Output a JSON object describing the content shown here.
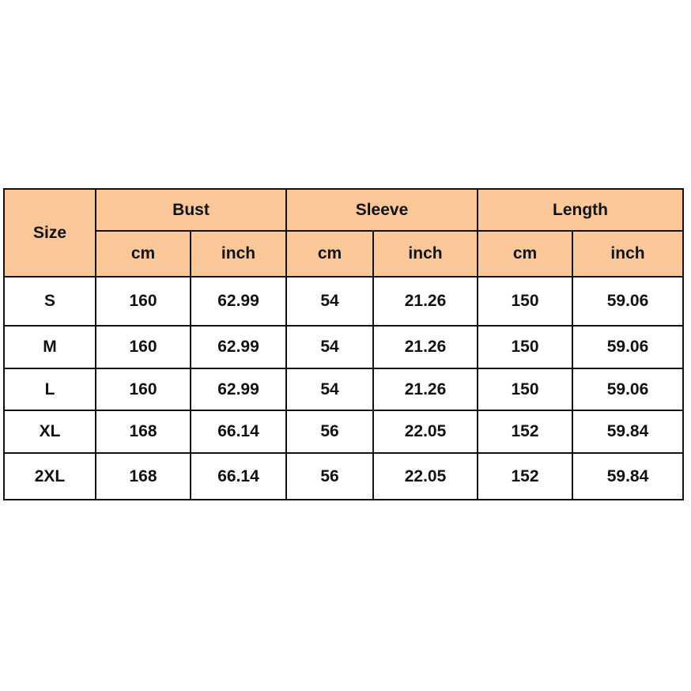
{
  "header": {
    "size": "Size",
    "groups": [
      "Bust",
      "Sleeve",
      "Length"
    ],
    "units": [
      "cm",
      "inch",
      "cm",
      "inch",
      "cm",
      "inch"
    ]
  },
  "colors": {
    "header_bg": "#fac898",
    "border": "#111111"
  },
  "rows": [
    [
      "S",
      "160",
      "62.99",
      "54",
      "21.26",
      "150",
      "59.06"
    ],
    [
      "M",
      "160",
      "62.99",
      "54",
      "21.26",
      "150",
      "59.06"
    ],
    [
      "L",
      "160",
      "62.99",
      "54",
      "21.26",
      "150",
      "59.06"
    ],
    [
      "XL",
      "168",
      "66.14",
      "56",
      "22.05",
      "152",
      "59.84"
    ],
    [
      "2XL",
      "168",
      "66.14",
      "56",
      "22.05",
      "152",
      "59.84"
    ]
  ]
}
